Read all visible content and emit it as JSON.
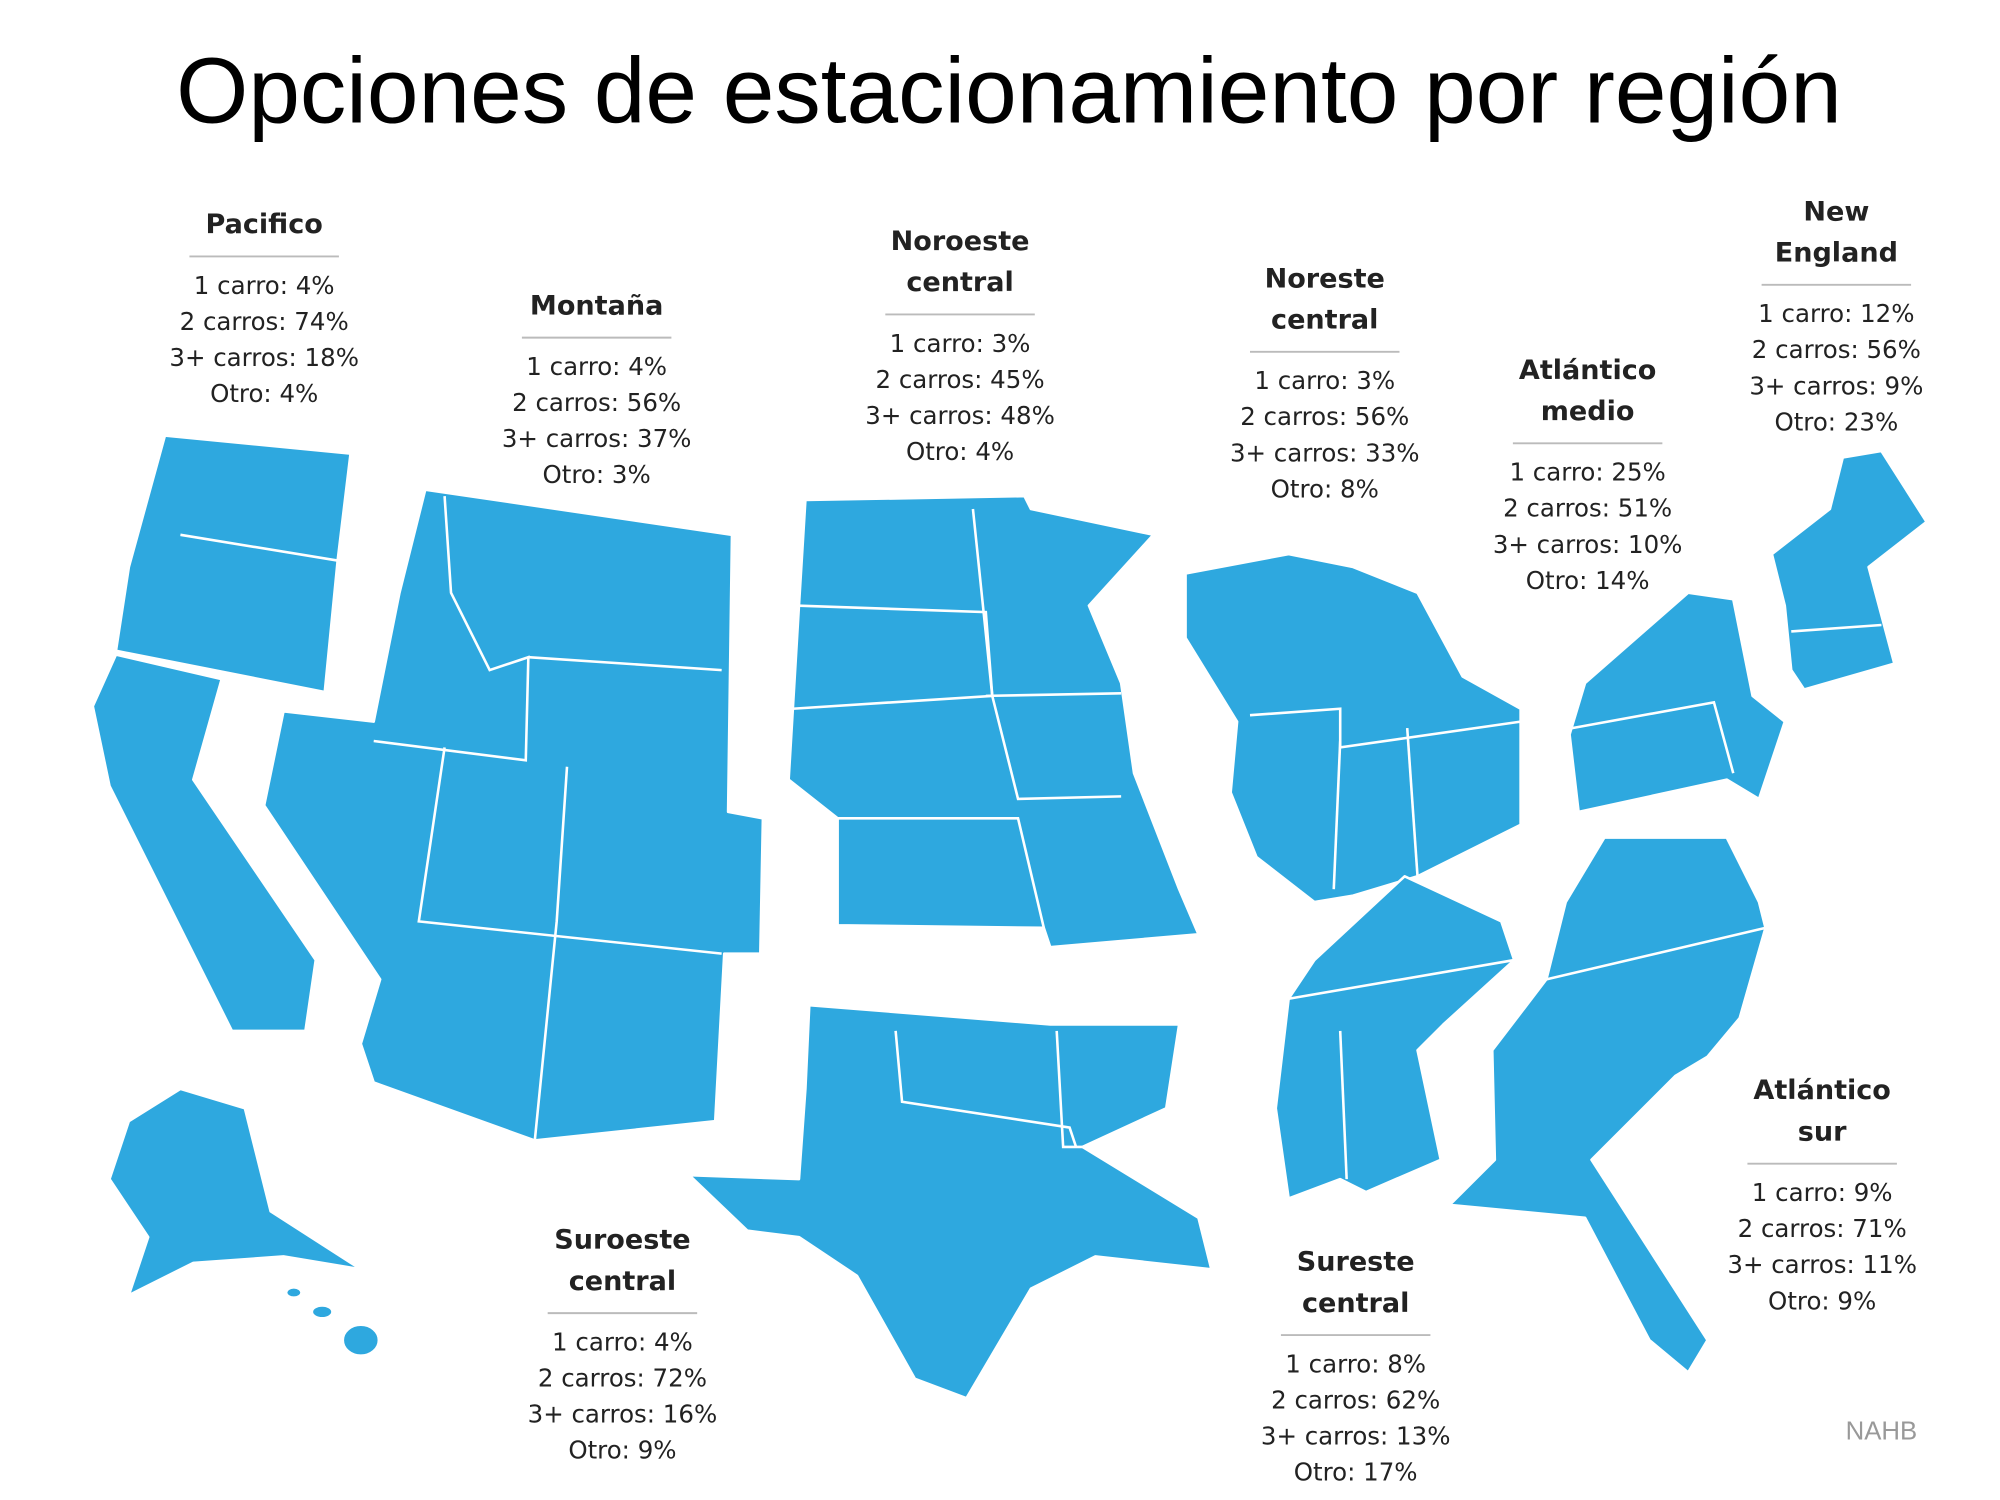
{
  "title": "Opciones de estacionamiento por región",
  "regions": [
    {
      "name": [
        "Pacifico"
      ],
      "lines": [
        "1 carro: 4%",
        "2 carros: 74%",
        "3+ carros: 18%",
        "Otro: 4%"
      ]
    },
    {
      "name": [
        "Montaña"
      ],
      "lines": [
        "1 carro: 4%",
        "2 carros: 56%",
        "3+ carros: 37%",
        "Otro: 3%"
      ]
    },
    {
      "name": [
        "Noroeste",
        "central"
      ],
      "lines": [
        "1 carro: 3%",
        "2 carros: 45%",
        "3+ carros: 48%",
        "Otro: 4%"
      ]
    },
    {
      "name": [
        "Noreste",
        "central"
      ],
      "lines": [
        "1 carro: 3%",
        "2 carros: 56%",
        "3+ carros: 33%",
        "Otro: 8%"
      ]
    },
    {
      "name": [
        "Atlántico",
        "medio"
      ],
      "lines": [
        "1 carro: 25%",
        "2 carros: 51%",
        "3+ carros: 10%",
        "Otro: 14%"
      ]
    },
    {
      "name": [
        "New",
        "England"
      ],
      "lines": [
        "1 carro: 12%",
        "2 carros: 56%",
        "3+ carros: 9%",
        "Otro: 23%"
      ]
    },
    {
      "name": [
        "Atlántico",
        "sur"
      ],
      "lines": [
        "1 carro: 9%",
        "2 carros: 71%",
        "3+ carros: 11%",
        "Otro: 9%"
      ]
    },
    {
      "name": [
        "Sureste",
        "central"
      ],
      "lines": [
        "1 carro: 8%",
        "2 carros: 62%",
        "3+ carros: 13%",
        "Otro: 17%"
      ]
    },
    {
      "name": [
        "Suroeste",
        "central"
      ],
      "lines": [
        "1 carro: 4%",
        "2 carros: 72%",
        "3+ carros: 16%",
        "Otro: 9%"
      ]
    }
  ],
  "source": "NAHB"
}
